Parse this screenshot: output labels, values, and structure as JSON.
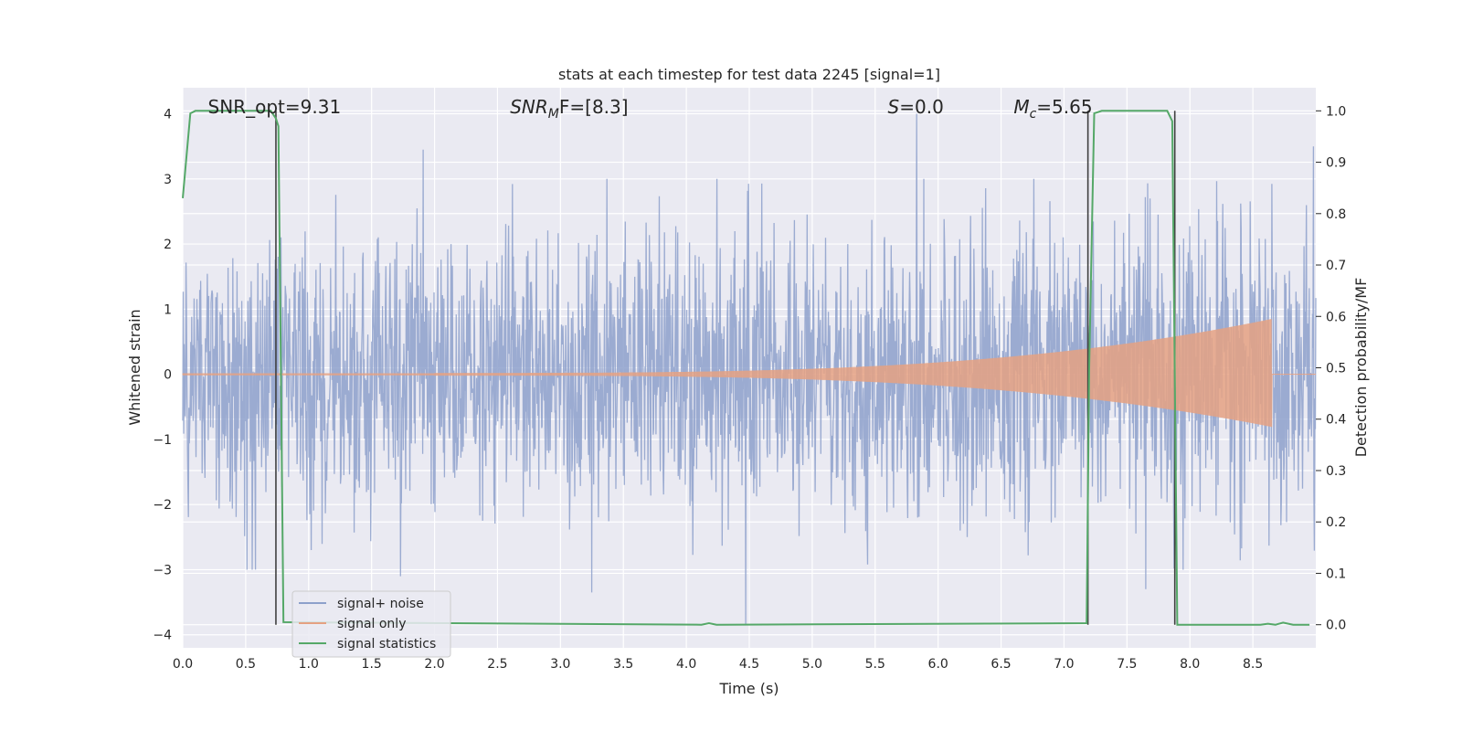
{
  "chart_data": {
    "type": "line",
    "title": "stats at each timestep for test data 2245 [signal=1]",
    "xlabel": "Time (s)",
    "ylabel": "Whitened strain",
    "ylabel_right": "Detection probability/MF",
    "xlim": [
      0.0,
      9.0
    ],
    "ylim": [
      -4.2,
      4.4
    ],
    "ylim_right": [
      -0.045,
      1.045
    ],
    "xticks": [
      "0.0",
      "0.5",
      "1.0",
      "1.5",
      "2.0",
      "2.5",
      "3.0",
      "3.5",
      "4.0",
      "4.5",
      "5.0",
      "5.5",
      "6.0",
      "6.5",
      "7.0",
      "7.5",
      "8.0",
      "8.5"
    ],
    "yticks_left": [
      "−4",
      "−3",
      "−2",
      "−1",
      "0",
      "1",
      "2",
      "3",
      "4"
    ],
    "yticks_right": [
      "0.0",
      "0.1",
      "0.2",
      "0.3",
      "0.4",
      "0.5",
      "0.6",
      "0.7",
      "0.8",
      "0.9",
      "1.0"
    ],
    "annotations": [
      {
        "text": "SNR_opt=9.31",
        "x": 0.2
      },
      {
        "text": "SNR",
        "sub": "M",
        "tail": "F=[8.3]",
        "x": 2.6
      },
      {
        "text": "S",
        "tail": "=0.0",
        "x": 5.6
      },
      {
        "text": "M",
        "sub": "c",
        "tail": "=5.65",
        "x": 6.6
      }
    ],
    "legend_position": "lower-left",
    "grid": true,
    "series": [
      {
        "name": "signal+ noise",
        "color": "#8da0cb",
        "axis": "left",
        "kind": "noise",
        "envelope": {
          "typical_amplitude": 1.6,
          "max_peak": 4.0,
          "min_peak": -3.85
        },
        "extreme_points": [
          {
            "x": 1.91,
            "y": 3.45
          },
          {
            "x": 5.83,
            "y": 4.0
          },
          {
            "x": 8.98,
            "y": 3.5
          },
          {
            "x": 4.47,
            "y": -3.85
          },
          {
            "x": 3.25,
            "y": -3.35
          },
          {
            "x": 7.65,
            "y": -3.3
          },
          {
            "x": 0.51,
            "y": -3.0
          },
          {
            "x": 1.73,
            "y": -3.1
          }
        ]
      },
      {
        "name": "signal only",
        "color": "#e5a182",
        "axis": "left",
        "kind": "chirp",
        "chirp": {
          "start": 2.0,
          "end": 8.65,
          "amp_start": 0.02,
          "amp_end": 0.85
        }
      },
      {
        "name": "signal statistics",
        "color": "#55a868",
        "axis": "right",
        "kind": "line",
        "x": [
          0.0,
          0.06,
          0.1,
          0.7,
          0.74,
          0.76,
          0.8,
          4.12,
          4.18,
          4.24,
          7.18,
          7.2,
          7.24,
          7.3,
          7.82,
          7.86,
          7.9,
          8.56,
          8.62,
          8.68,
          8.74,
          8.82,
          8.95
        ],
        "y": [
          0.83,
          0.995,
          1.0,
          1.0,
          0.985,
          0.97,
          0.005,
          0.0,
          0.003,
          0.0,
          0.003,
          0.5,
          0.995,
          1.0,
          1.0,
          0.98,
          0.0,
          0.0,
          0.002,
          0.0,
          0.004,
          0.0,
          0.0
        ]
      }
    ],
    "vlines": [
      {
        "x": 0.74,
        "color": "#404040"
      },
      {
        "x": 7.19,
        "color": "#404040"
      },
      {
        "x": 7.88,
        "color": "#404040"
      }
    ]
  }
}
